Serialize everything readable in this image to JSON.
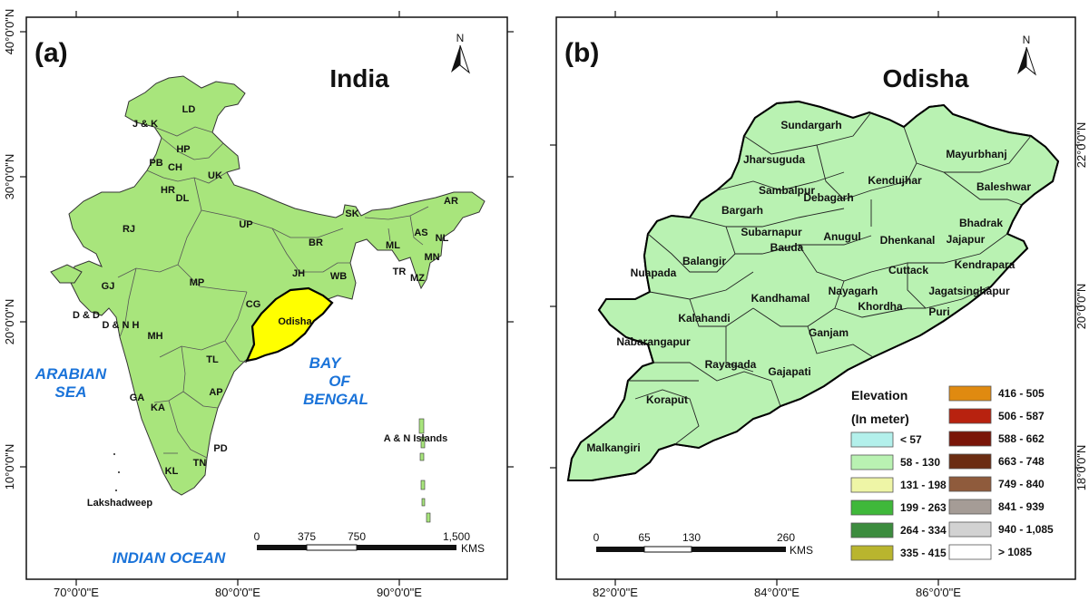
{
  "panel_a": {
    "label": "(a)",
    "title": "India",
    "north": "N",
    "lat_ticks": [
      "40°0'0\"N",
      "30°0'0\"N",
      "20°0'0\"N",
      "10°0'0\"N"
    ],
    "lon_ticks": [
      "70°0'0\"E",
      "80°0'0\"E",
      "90°0'0\"E"
    ],
    "states": [
      "LD",
      "J & K",
      "HP",
      "PB",
      "CH",
      "UK",
      "HR",
      "DL",
      "RJ",
      "UP",
      "SK",
      "AR",
      "AS",
      "NL",
      "ML",
      "MN",
      "BR",
      "JH",
      "WB",
      "TR",
      "MZ",
      "GJ",
      "MP",
      "CG",
      "D & D",
      "D & N H",
      "MH",
      "TL",
      "AP",
      "GA",
      "KA",
      "PD",
      "TN",
      "KL"
    ],
    "highlight": "Odisha",
    "seas": {
      "arabian_1": "ARABIAN",
      "arabian_2": "SEA",
      "bay_1": "BAY",
      "bay_2": "OF",
      "bay_3": "BENGAL",
      "indian": "INDIAN OCEAN"
    },
    "islands": {
      "an": "A & N Islands",
      "lak": "Lakshadweep"
    },
    "scale": {
      "labels": [
        "0",
        "375",
        "750",
        "1,500"
      ],
      "unit": "KMS"
    },
    "colors": {
      "land": "#a8e57c",
      "highlight": "#ffff00"
    }
  },
  "panel_b": {
    "label": "(b)",
    "title": "Odisha",
    "north": "N",
    "lat_ticks": [
      "22°0'0\"N",
      "20°0'0\"N",
      "18°0'0\"N"
    ],
    "lon_ticks": [
      "82°0'0\"E",
      "84°0'0\"E",
      "86°0'0\"E"
    ],
    "districts": [
      "Sundargarh",
      "Jharsuguda",
      "Sambalpur",
      "Debagarh",
      "Kendujhar",
      "Mayurbhanj",
      "Baleshwar",
      "Bargarh",
      "Subarnapur",
      "Bauda",
      "Anugul",
      "Dhenkanal",
      "Bhadrak",
      "Jajapur",
      "Nuapada",
      "Balangir",
      "Cuttack",
      "Kendrapara",
      "Kandhamal",
      "Nayagarh",
      "Jagatsinghapur",
      "Khordha",
      "Puri",
      "Kalahandi",
      "Nabarangapur",
      "Ganjam",
      "Rayagada",
      "Gajapati",
      "Koraput",
      "Malkangiri"
    ],
    "scale": {
      "labels": [
        "0",
        "65",
        "130",
        "260"
      ],
      "unit": "KMS"
    },
    "legend": {
      "title_1": "Elevation",
      "title_2": "(In meter)",
      "items": [
        {
          "label": "< 57",
          "color": "#b3f0eb"
        },
        {
          "label": "58 - 130",
          "color": "#b9f2b2"
        },
        {
          "label": "131 - 198",
          "color": "#eef5a6"
        },
        {
          "label": "199 - 263",
          "color": "#3fb83a"
        },
        {
          "label": "264 - 334",
          "color": "#3c8c3e"
        },
        {
          "label": "335 - 415",
          "color": "#b9b52e"
        },
        {
          "label": "416 - 505",
          "color": "#e08a10"
        },
        {
          "label": "506 - 587",
          "color": "#b8220f"
        },
        {
          "label": "588 - 662",
          "color": "#7a1508"
        },
        {
          "label": "663 - 748",
          "color": "#6b2c12"
        },
        {
          "label": "749 - 840",
          "color": "#8f5b3c"
        },
        {
          "label": "841 - 939",
          "color": "#a59c96"
        },
        {
          "label": "940 - 1,085",
          "color": "#d2d2d2"
        },
        {
          "label": "> 1085",
          "color": "#ffffff"
        }
      ]
    }
  }
}
